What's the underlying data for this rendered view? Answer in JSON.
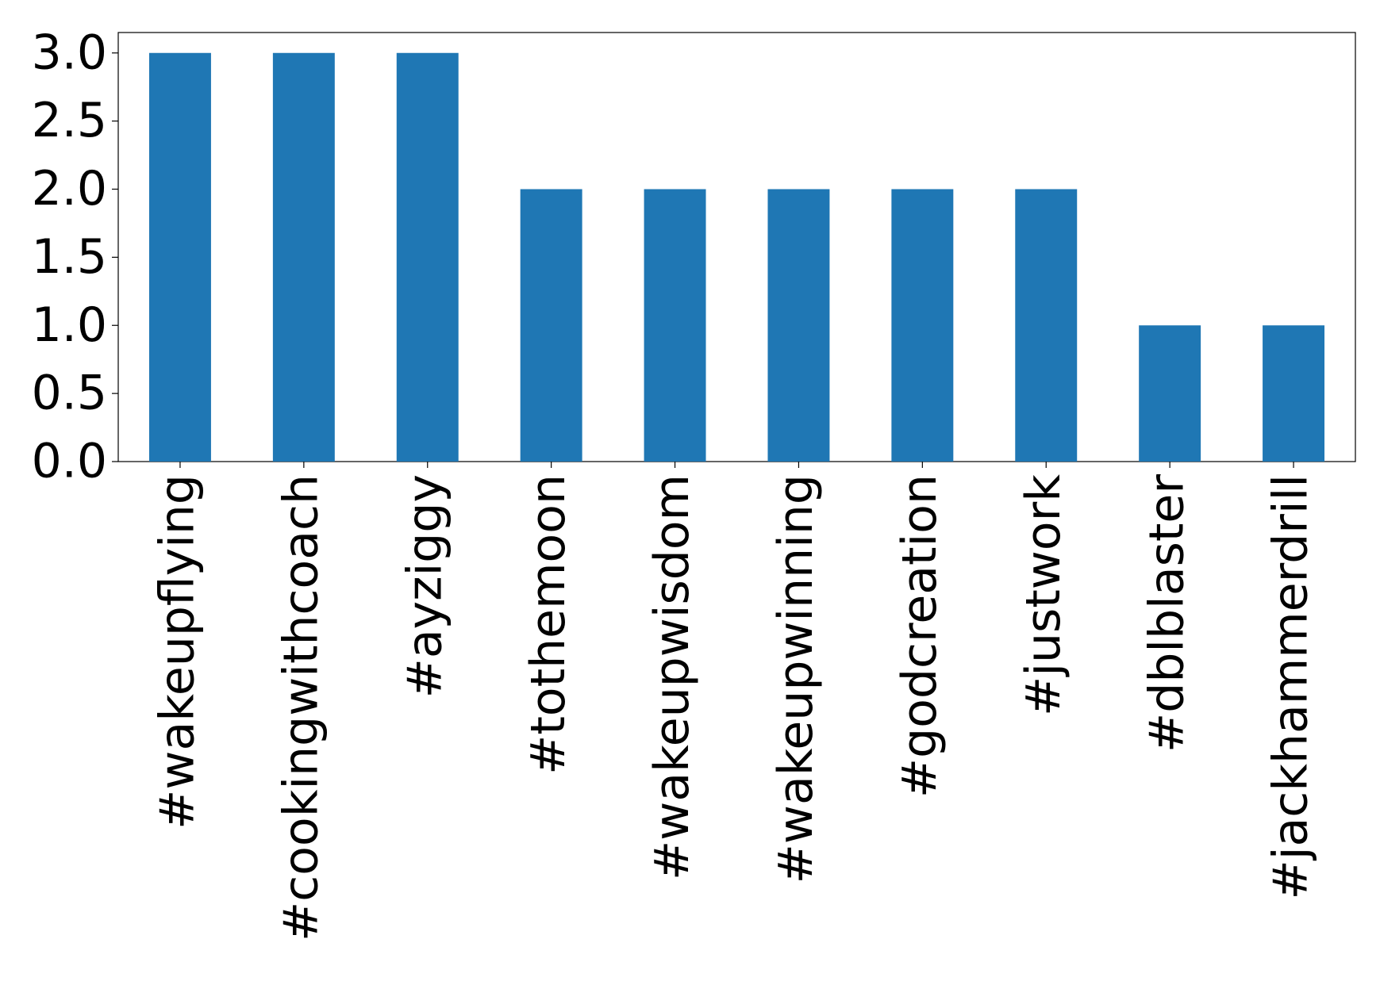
{
  "chart_data": {
    "type": "bar",
    "categories": [
      "#wakeupflying",
      "#cookingwithcoach",
      "#ayziggy",
      "#tothemoon",
      "#wakeupwisdom",
      "#wakeupwinning",
      "#godcreation",
      "#justwork",
      "#dblblaster",
      "#jackhammerdrill"
    ],
    "values": [
      3,
      3,
      3,
      2,
      2,
      2,
      2,
      2,
      1,
      1
    ],
    "color": "#1f77b4",
    "ylim": [
      0,
      3.15
    ],
    "yticks": [
      {
        "value": 0,
        "label": "0.0"
      },
      0.5,
      {
        "value": 1,
        "label": "1.0"
      },
      1.5,
      {
        "value": 2,
        "label": "2.0"
      },
      2.5,
      {
        "value": 3,
        "label": "3.0"
      }
    ],
    "grid": false
  }
}
